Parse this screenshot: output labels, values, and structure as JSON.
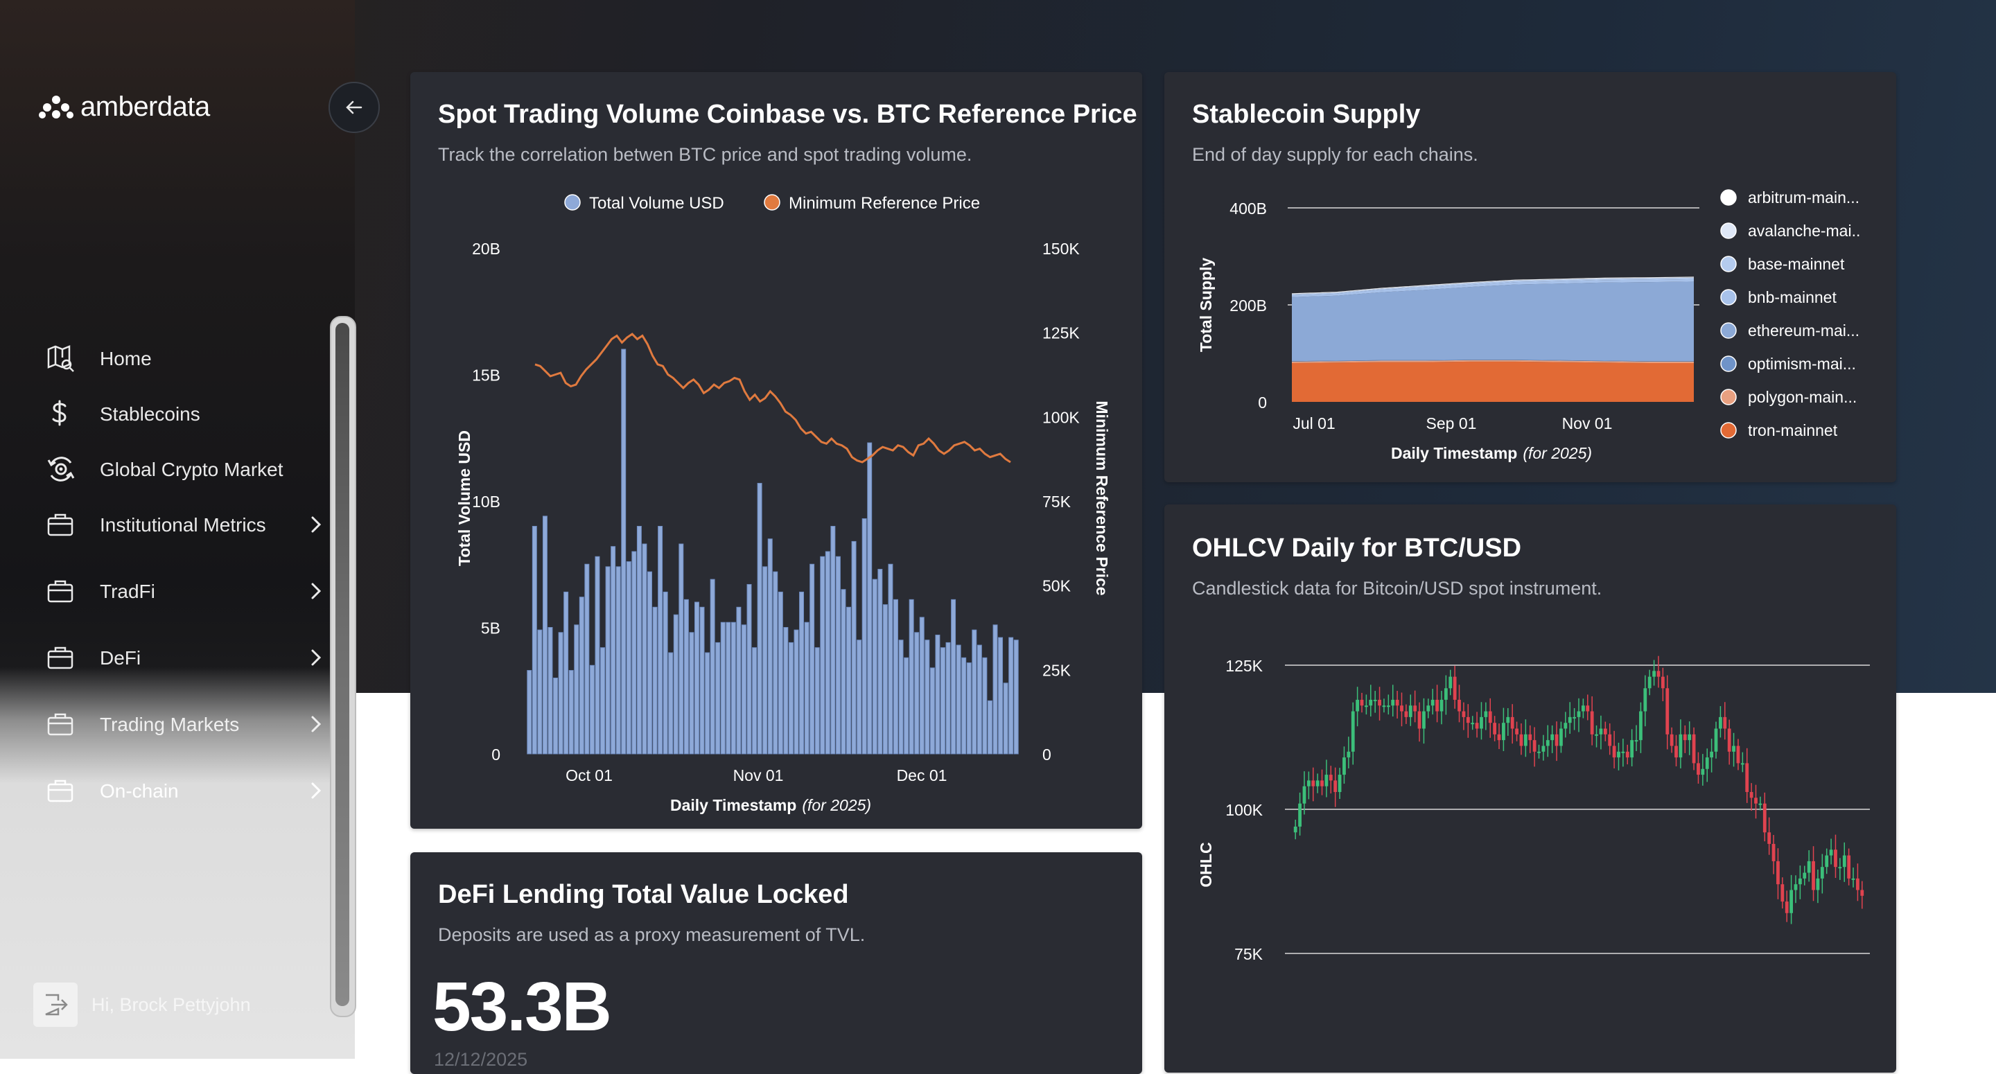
{
  "app": {
    "brand": "amberdata"
  },
  "sidebar": {
    "items": [
      {
        "label": "Home",
        "icon": "map-search-icon",
        "has_chevron": false
      },
      {
        "label": "Stablecoins",
        "icon": "dollar-icon",
        "has_chevron": false
      },
      {
        "label": "Global Crypto Market",
        "icon": "globe-refresh-icon",
        "has_chevron": false
      },
      {
        "label": "Institutional Metrics",
        "icon": "briefcase-icon",
        "has_chevron": true
      },
      {
        "label": "TradFi",
        "icon": "briefcase-icon",
        "has_chevron": true
      },
      {
        "label": "DeFi",
        "icon": "briefcase-icon",
        "has_chevron": true
      },
      {
        "label": "Trading Markets",
        "icon": "briefcase-icon",
        "has_chevron": true
      },
      {
        "label": "On-chain",
        "icon": "briefcase-icon",
        "has_chevron": true
      }
    ],
    "user_greeting": "Hi, Brock Pettyjohn"
  },
  "cards": {
    "spot": {
      "title": "Spot Trading Volume Coinbase vs. BTC Reference Price",
      "subtitle": "Track the correlation betwen BTC price and spot trading volume."
    },
    "stablecoin": {
      "title": "Stablecoin Supply",
      "subtitle": "End of day supply for each chains."
    },
    "ohlcv": {
      "title": "OHLCV Daily for BTC/USD",
      "subtitle": "Candlestick data for Bitcoin/USD spot instrument."
    },
    "defi": {
      "title": "DeFi Lending Total Value Locked",
      "subtitle": "Deposits are used as a proxy measurement of TVL.",
      "value": "53.3B",
      "date": "12/12/2025"
    }
  },
  "chart_data": [
    {
      "id": "spot",
      "type": "bar",
      "legend": [
        {
          "name": "Total Volume USD",
          "color": "#8ea9d8"
        },
        {
          "name": "Minimum Reference Price",
          "color": "#e07a3f"
        }
      ],
      "xlabel": "Daily Timestamp",
      "xlabel_note": "(for 2025)",
      "ylabel": "Total Volume USD",
      "y2label": "Minimum Reference Price",
      "x_ticks": [
        "Oct 01",
        "Nov 01",
        "Dec 01"
      ],
      "y_ticks": [
        "0",
        "5B",
        "10B",
        "15B",
        "20B"
      ],
      "y2_ticks": [
        "0",
        "25K",
        "50K",
        "75K",
        "100K",
        "125K",
        "150K"
      ],
      "ylim": [
        0,
        20
      ],
      "y2lim": [
        0,
        150
      ],
      "x_start": "Sep 19",
      "volume_billions": [
        3.3,
        9.0,
        4.9,
        9.4,
        5.0,
        3.0,
        4.8,
        6.4,
        3.3,
        5.1,
        6.2,
        7.5,
        3.5,
        7.8,
        4.2,
        7.4,
        8.2,
        7.4,
        16.0,
        7.6,
        8.0,
        9.0,
        8.3,
        7.2,
        5.8,
        9.0,
        6.4,
        4.0,
        5.5,
        8.3,
        6.1,
        4.8,
        6.0,
        5.8,
        4.0,
        6.9,
        4.4,
        5.2,
        5.2,
        5.2,
        5.8,
        5.1,
        6.7,
        4.2,
        10.7,
        7.4,
        8.5,
        7.2,
        6.4,
        5.0,
        4.4,
        4.9,
        6.4,
        5.2,
        7.5,
        4.2,
        7.8,
        8.0,
        9.0,
        7.8,
        6.5,
        5.8,
        8.4,
        4.5,
        9.3,
        12.3,
        6.9,
        7.3,
        5.9,
        7.5,
        6.1,
        4.5,
        3.8,
        6.1,
        4.8,
        5.4,
        4.5,
        3.4,
        4.7,
        4.2,
        4.4,
        6.1,
        4.3,
        3.8,
        3.6,
        4.9,
        4.3,
        3.8,
        2.1,
        5.1,
        4.6,
        2.8,
        4.6,
        4.5
      ],
      "min_price_thousands": [
        115.5,
        115.0,
        113.5,
        112.0,
        112.5,
        113.0,
        110.0,
        109.0,
        109.5,
        112.0,
        114.0,
        115.5,
        117.0,
        119.0,
        121.0,
        123.0,
        124.0,
        122.0,
        123.5,
        124.5,
        123.0,
        124.0,
        121.5,
        118.0,
        115.5,
        115.0,
        112.5,
        111.5,
        110.0,
        108.5,
        110.0,
        111.0,
        109.5,
        107.0,
        108.0,
        109.5,
        108.5,
        110.0,
        110.5,
        111.5,
        111.0,
        107.5,
        105.0,
        106.5,
        104.5,
        105.5,
        107.5,
        106.0,
        104.0,
        101.5,
        100.5,
        99.0,
        96.5,
        95.0,
        95.5,
        94.0,
        92.5,
        92.0,
        93.5,
        92.0,
        91.5,
        90.5,
        88.0,
        87.0,
        86.5,
        87.5,
        88.5,
        90.0,
        91.0,
        90.5,
        90.0,
        91.5,
        91.0,
        89.5,
        88.5,
        91.5,
        92.0,
        93.5,
        92.0,
        90.0,
        89.0,
        90.0,
        91.5,
        92.0,
        92.5,
        91.5,
        90.0,
        90.5,
        89.0,
        88.0,
        88.5,
        89.0,
        87.5,
        86.5
      ]
    },
    {
      "id": "stablecoin",
      "type": "area",
      "stacked": true,
      "ylabel": "Total Supply",
      "xlabel": "Daily Timestamp",
      "xlabel_note": "(for 2025)",
      "x_ticks": [
        "Jul 01",
        "Sep 01",
        "Nov 01"
      ],
      "y_ticks": [
        "0",
        "200B",
        "400B"
      ],
      "ylim": [
        0,
        400
      ],
      "x_start": "Jun 02",
      "series": [
        {
          "name": "tron-mainnet",
          "color": "#e26a35",
          "values_billions": [
            80,
            81,
            82,
            82,
            83,
            83,
            82,
            81,
            80,
            80
          ]
        },
        {
          "name": "polygon-main...",
          "color": "#e8a080",
          "values_billions": [
            3,
            3,
            3,
            3,
            3,
            3,
            3,
            3,
            3,
            3
          ]
        },
        {
          "name": "optimism-mai...",
          "color": "#6f93c8",
          "values_billions": [
            1,
            1,
            1,
            1,
            1,
            1,
            1,
            1,
            1,
            1
          ]
        },
        {
          "name": "ethereum-mai...",
          "color": "#8ca9d6",
          "values_billions": [
            132,
            134,
            140,
            145,
            150,
            155,
            158,
            161,
            163,
            164
          ]
        },
        {
          "name": "bnb-mainnet",
          "color": "#a8c2ea",
          "values_billions": [
            4,
            4,
            5,
            5,
            5,
            5,
            5,
            5,
            5,
            5
          ]
        },
        {
          "name": "base-mainnet",
          "color": "#b4cbee",
          "values_billions": [
            2,
            2,
            2,
            3,
            3,
            3,
            3,
            3,
            3,
            3
          ]
        },
        {
          "name": "avalanche-mai..",
          "color": "#dfe8f7",
          "values_billions": [
            1,
            1,
            1,
            1,
            1,
            1,
            1,
            1,
            1,
            1
          ]
        },
        {
          "name": "arbitrum-main...",
          "color": "#ffffff",
          "values_billions": [
            1,
            1,
            1,
            1,
            1,
            1,
            1,
            1,
            1,
            1
          ]
        }
      ],
      "legend_order": [
        "arbitrum-main...",
        "avalanche-mai..",
        "base-mainnet",
        "bnb-mainnet",
        "ethereum-mai...",
        "optimism-mai...",
        "polygon-main...",
        "tron-mainnet"
      ]
    },
    {
      "id": "ohlcv",
      "type": "candlestick",
      "ylabel": "OHLC",
      "y_ticks": [
        "75K",
        "100K",
        "125K"
      ],
      "ylim": [
        70,
        130
      ],
      "up_color": "#3cbf7a",
      "down_color": "#e0434f",
      "close_thousands": [
        97,
        101,
        104,
        105,
        104,
        105,
        104,
        106,
        105,
        103,
        106,
        109,
        110,
        117,
        119,
        118,
        118,
        119,
        119,
        118,
        118,
        118,
        119,
        118,
        117,
        116,
        118,
        117,
        114,
        117,
        118,
        119,
        117,
        119,
        121,
        123,
        119,
        117,
        116,
        115,
        115,
        114,
        116,
        117,
        115,
        113,
        112,
        115,
        116,
        114,
        113,
        111,
        113,
        112,
        110,
        110,
        111,
        112,
        113,
        111,
        114,
        115,
        116,
        116,
        117,
        118,
        117,
        113,
        113,
        114,
        113,
        111,
        109,
        110,
        110,
        109,
        112,
        112,
        117,
        121,
        123,
        124,
        123,
        121,
        113,
        111,
        109,
        113,
        112,
        113,
        108,
        106,
        107,
        109,
        110,
        114,
        116,
        114,
        110,
        111,
        108,
        108,
        103,
        102,
        101,
        101,
        96,
        94,
        91,
        87,
        84,
        82,
        86,
        87,
        88,
        89,
        91,
        86,
        88,
        90,
        92,
        93,
        90,
        90,
        92,
        88,
        88,
        86,
        85
      ]
    }
  ]
}
